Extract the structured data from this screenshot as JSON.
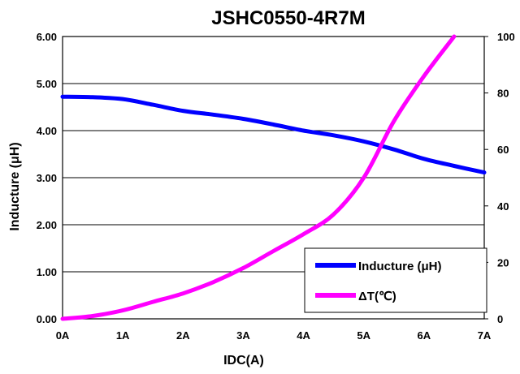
{
  "chart_data": {
    "type": "line",
    "title": "JSHC0550-4R7M",
    "xlabel": "IDC(A)",
    "ylabel": "Inducture (μH)",
    "y2label": "",
    "x_ticks": [
      "0A",
      "1A",
      "2A",
      "3A",
      "4A",
      "5A",
      "6A",
      "7A"
    ],
    "xlim": [
      0,
      7
    ],
    "y_ticks": [
      "0.00",
      "1.00",
      "2.00",
      "3.00",
      "4.00",
      "5.00",
      "6.00"
    ],
    "ylim": [
      0,
      6
    ],
    "y2_ticks": [
      "0",
      "20",
      "40",
      "60",
      "80",
      "100"
    ],
    "y2lim": [
      0,
      100
    ],
    "grid": true,
    "legend_position": "bottom-right",
    "series": [
      {
        "name": "Inducture (μH)",
        "axis": "left",
        "color": "#0000ff",
        "x": [
          0,
          0.5,
          1,
          1.5,
          2,
          2.5,
          3,
          3.5,
          4,
          4.5,
          5,
          5.5,
          6,
          6.5,
          7
        ],
        "y": [
          4.72,
          4.71,
          4.67,
          4.55,
          4.42,
          4.34,
          4.25,
          4.13,
          4.0,
          3.9,
          3.77,
          3.6,
          3.4,
          3.25,
          3.11
        ]
      },
      {
        "name": "ΔT(℃)",
        "axis": "right",
        "color": "#ff00ff",
        "x": [
          0,
          0.5,
          1,
          1.5,
          2,
          2.5,
          3,
          3.5,
          4,
          4.5,
          5,
          5.5,
          6,
          6.5
        ],
        "y": [
          0,
          1,
          3,
          6,
          9,
          13,
          18,
          24,
          30,
          37,
          50,
          70,
          86,
          100
        ]
      }
    ]
  }
}
